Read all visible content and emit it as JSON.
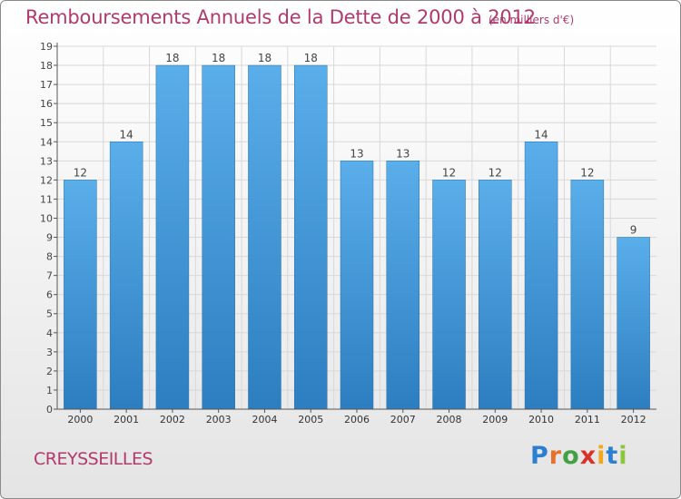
{
  "title": "Remboursements Annuels de la Dette de 2000 à 2012",
  "unit": "(en milliers d'€)",
  "commune": "CREYSSEILLES",
  "brand": "Proxiti",
  "colors": {
    "title": "#b03a6d",
    "bar_top": "#5aaeea",
    "bar_bottom": "#2d7ec0",
    "grid": "#d8d8d8"
  },
  "chart_data": {
    "type": "bar",
    "categories": [
      "2000",
      "2001",
      "2002",
      "2003",
      "2004",
      "2005",
      "2006",
      "2007",
      "2008",
      "2009",
      "2010",
      "2011",
      "2012"
    ],
    "values": [
      12,
      14,
      18,
      18,
      18,
      18,
      13,
      13,
      12,
      12,
      14,
      12,
      9
    ],
    "ylim": [
      0,
      19
    ],
    "yticks": [
      0,
      1,
      2,
      3,
      4,
      5,
      6,
      7,
      8,
      9,
      10,
      11,
      12,
      13,
      14,
      15,
      16,
      17,
      18,
      19
    ],
    "grid": true,
    "data_labels": true
  }
}
